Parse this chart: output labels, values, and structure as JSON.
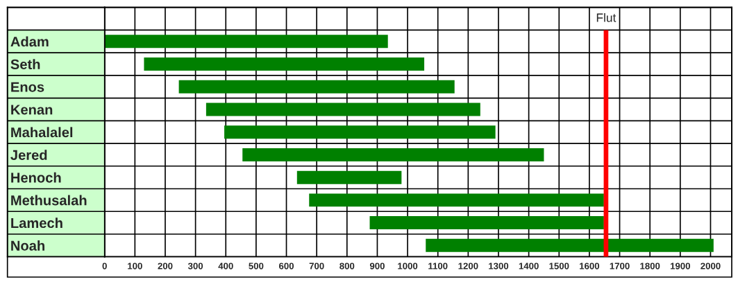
{
  "chart_data": {
    "type": "bar",
    "orientation": "horizontal",
    "categories": [
      "Adam",
      "Seth",
      "Enos",
      "Kenan",
      "Mahalalel",
      "Jered",
      "Henoch",
      "Methusalah",
      "Lamech",
      "Noah"
    ],
    "base": [
      0,
      130,
      245,
      335,
      395,
      455,
      635,
      675,
      875,
      1060
    ],
    "values": [
      935,
      925,
      910,
      905,
      895,
      995,
      345,
      973,
      773,
      950
    ],
    "color": "#008000",
    "xlim": [
      0,
      2070
    ],
    "xticks": [
      0,
      100,
      200,
      300,
      400,
      500,
      600,
      700,
      800,
      900,
      1000,
      1100,
      1200,
      1300,
      1400,
      1500,
      1600,
      1700,
      1800,
      1900,
      2000
    ],
    "grid": true,
    "ref_lines": [
      {
        "axis": "x",
        "value": 1655,
        "label": "Flut",
        "color": "#ff0000"
      }
    ]
  }
}
